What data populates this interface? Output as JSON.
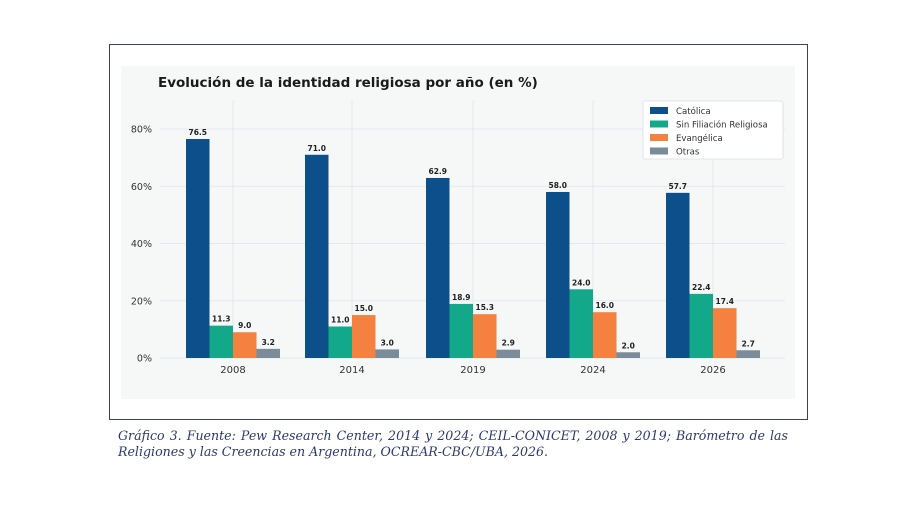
{
  "chart_data": {
    "type": "bar",
    "title": "Evolución de la identidad religiosa por año (en %)",
    "xlabel": "",
    "ylabel": "",
    "categories": [
      "2008",
      "2014",
      "2019",
      "2024",
      "2026"
    ],
    "series": [
      {
        "name": "Católica",
        "color": "#0d4f8b",
        "values": [
          76.5,
          71.0,
          62.9,
          58.0,
          57.7
        ]
      },
      {
        "name": "Sin Filiación Religiosa",
        "color": "#14a88a",
        "values": [
          11.3,
          11.0,
          18.9,
          24.0,
          22.4
        ]
      },
      {
        "name": "Evangélica",
        "color": "#f4813f",
        "values": [
          9.0,
          15.0,
          15.3,
          16.0,
          17.4
        ]
      },
      {
        "name": "Otras",
        "color": "#7a8b99",
        "values": [
          3.2,
          3.0,
          2.9,
          2.0,
          2.7
        ]
      }
    ],
    "ylim": [
      0,
      80
    ],
    "yticks": [
      "0%",
      "20%",
      "40%",
      "60%",
      "80%"
    ],
    "grid": true,
    "legend_position": "top-right"
  },
  "caption": "Gráfico 3. Fuente: Pew Research Center, 2014 y 2024; CEIL-CONICET, 2008 y 2019; Barómetro de las Religiones y las Creencias en Argentina, OCREAR-CBC/UBA, 2026."
}
